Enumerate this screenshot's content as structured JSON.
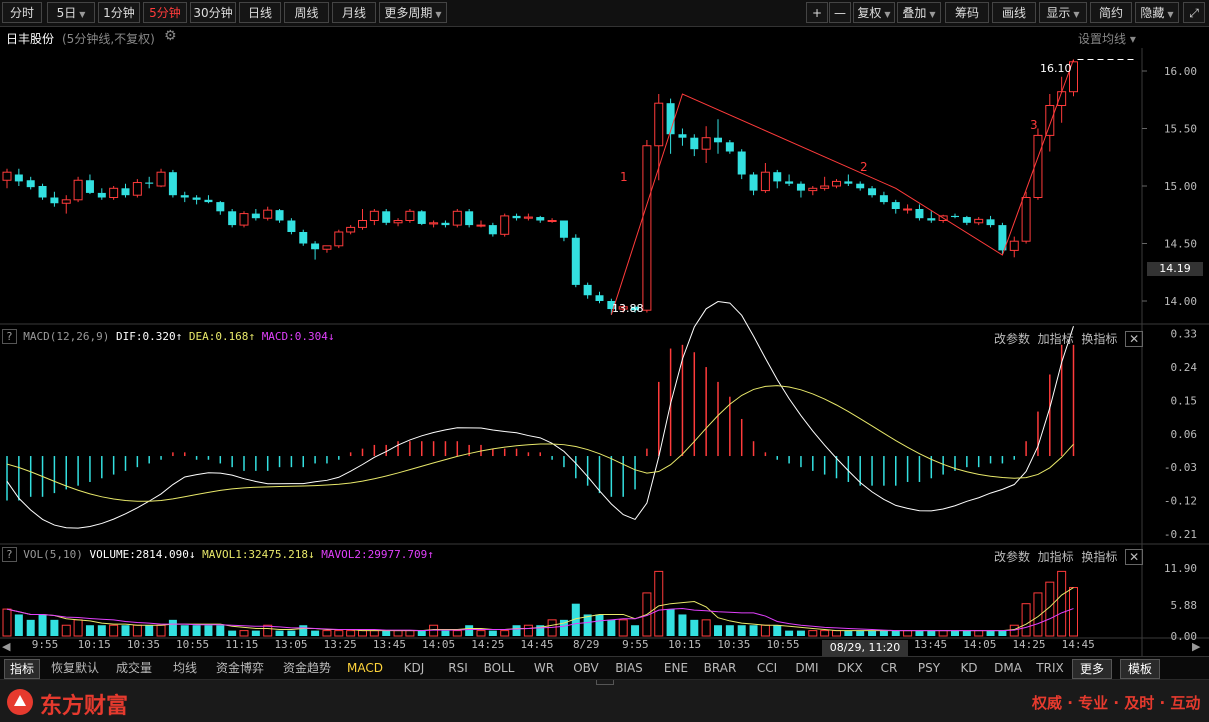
{
  "toolbar": {
    "periods": [
      "分时",
      "5日",
      "1分钟",
      "5分钟",
      "30分钟",
      "日线",
      "周线",
      "月线",
      "更多周期"
    ],
    "active_period": "5分钟",
    "right_buttons": [
      "复权",
      "叠加",
      "筹码",
      "画线",
      "显示",
      "简约",
      "隐藏"
    ],
    "plus": "+",
    "minus": "—"
  },
  "stock": {
    "name": "日丰股份",
    "mode": "(5分钟线,不复权)",
    "setting_link": "设置均线"
  },
  "price_panel": {
    "y_ticks": [
      "16.00",
      "15.50",
      "15.00",
      "14.50",
      "14.00"
    ],
    "current_price": "14.19",
    "high_label": "16.10",
    "low_label": "13.88",
    "wave_labels": [
      "1",
      "2",
      "3"
    ]
  },
  "macd_panel": {
    "title": "MACD(12,26,9)",
    "dif": "DIF:0.320",
    "dea": "DEA:0.168",
    "macd": "MACD:0.304",
    "buttons": [
      "改参数",
      "加指标",
      "换指标"
    ],
    "y_ticks": [
      "0.33",
      "0.24",
      "0.15",
      "0.06",
      "-0.03",
      "-0.12",
      "-0.21"
    ]
  },
  "vol_panel": {
    "title": "VOL(5,10)",
    "volume": "VOLUME:2814.090",
    "mavol1": "MAVOL1:32475.218",
    "mavol2": "MAVOL2:29977.709",
    "buttons": [
      "改参数",
      "加指标",
      "换指标"
    ],
    "y_ticks": [
      "11.90",
      "5.88",
      "0.00"
    ]
  },
  "time_axis": {
    "labels": [
      "9:55",
      "10:15",
      "10:35",
      "10:55",
      "11:15",
      "13:05",
      "13:25",
      "13:45",
      "14:05",
      "14:25",
      "14:45",
      "8/29",
      "9:55",
      "10:15",
      "10:35",
      "10:55",
      "11:",
      "13:25",
      "13:45",
      "14:05",
      "14:25",
      "14:45"
    ],
    "cursor_label": "08/29, 11:20"
  },
  "tabs": [
    "指标",
    "恢复默认",
    "成交量",
    "均线",
    "资金博弈",
    "资金趋势",
    "MACD",
    "KDJ",
    "RSI",
    "BOLL",
    "WR",
    "OBV",
    "BIAS",
    "ENE",
    "BRAR",
    "CCI",
    "DMI",
    "DKX",
    "CR",
    "PSY",
    "KD",
    "DMA",
    "TRIX",
    "更多",
    "模板"
  ],
  "footer": {
    "brand": "东方财富",
    "slogan": "权威 · 专业 · 及时 · 互动"
  },
  "colors": {
    "up": "#ff3b3b",
    "down": "#33e0e0",
    "dif_line": "#ffffff",
    "dea_line": "#e8e86a",
    "mavol2": "#e040fb",
    "brand_red": "#e63a2e"
  },
  "chart_data": {
    "type": "candlestick",
    "ohlc": [
      [
        15.05,
        15.15,
        14.98,
        15.12
      ],
      [
        15.1,
        15.15,
        15.0,
        15.04
      ],
      [
        15.05,
        15.08,
        14.97,
        14.99
      ],
      [
        15.0,
        15.02,
        14.88,
        14.9
      ],
      [
        14.9,
        14.95,
        14.82,
        14.85
      ],
      [
        14.85,
        14.92,
        14.76,
        14.88
      ],
      [
        14.88,
        15.08,
        14.86,
        15.05
      ],
      [
        15.05,
        15.1,
        14.93,
        14.94
      ],
      [
        14.94,
        14.98,
        14.88,
        14.9
      ],
      [
        14.9,
        15.0,
        14.88,
        14.98
      ],
      [
        14.98,
        15.02,
        14.9,
        14.92
      ],
      [
        14.92,
        15.06,
        14.9,
        15.03
      ],
      [
        15.03,
        15.08,
        14.98,
        15.02
      ],
      [
        15.0,
        15.15,
        14.99,
        15.12
      ],
      [
        15.12,
        15.14,
        14.9,
        14.92
      ],
      [
        14.92,
        14.95,
        14.86,
        14.9
      ],
      [
        14.9,
        14.92,
        14.84,
        14.88
      ],
      [
        14.88,
        14.92,
        14.85,
        14.86
      ],
      [
        14.86,
        14.87,
        14.75,
        14.78
      ],
      [
        14.78,
        14.8,
        14.64,
        14.66
      ],
      [
        14.66,
        14.78,
        14.64,
        14.76
      ],
      [
        14.76,
        14.8,
        14.7,
        14.72
      ],
      [
        14.72,
        14.82,
        14.7,
        14.79
      ],
      [
        14.79,
        14.8,
        14.68,
        14.7
      ],
      [
        14.7,
        14.72,
        14.58,
        14.6
      ],
      [
        14.6,
        14.62,
        14.48,
        14.5
      ],
      [
        14.5,
        14.52,
        14.36,
        14.45
      ],
      [
        14.45,
        14.48,
        14.42,
        14.48
      ],
      [
        14.48,
        14.62,
        14.46,
        14.6
      ],
      [
        14.6,
        14.66,
        14.58,
        14.64
      ],
      [
        14.64,
        14.8,
        14.62,
        14.7
      ],
      [
        14.7,
        14.8,
        14.66,
        14.78
      ],
      [
        14.78,
        14.8,
        14.66,
        14.68
      ],
      [
        14.68,
        14.72,
        14.65,
        14.7
      ],
      [
        14.7,
        14.8,
        14.68,
        14.78
      ],
      [
        14.78,
        14.79,
        14.66,
        14.67
      ],
      [
        14.67,
        14.7,
        14.64,
        14.68
      ],
      [
        14.68,
        14.7,
        14.64,
        14.66
      ],
      [
        14.66,
        14.8,
        14.64,
        14.78
      ],
      [
        14.78,
        14.8,
        14.64,
        14.66
      ],
      [
        14.66,
        14.7,
        14.64,
        14.66
      ],
      [
        14.66,
        14.68,
        14.56,
        14.58
      ],
      [
        14.58,
        14.76,
        14.56,
        14.74
      ],
      [
        14.74,
        14.76,
        14.7,
        14.72
      ],
      [
        14.72,
        14.76,
        14.7,
        14.73
      ],
      [
        14.73,
        14.74,
        14.68,
        14.7
      ],
      [
        14.7,
        14.72,
        14.68,
        14.7
      ],
      [
        14.7,
        14.7,
        14.52,
        14.55
      ],
      [
        14.55,
        14.58,
        14.12,
        14.14
      ],
      [
        14.14,
        14.16,
        14.02,
        14.05
      ],
      [
        14.05,
        14.08,
        13.98,
        14.0
      ],
      [
        14.0,
        14.02,
        13.88,
        13.93
      ],
      [
        13.93,
        13.96,
        13.9,
        13.95
      ],
      [
        13.95,
        13.96,
        13.9,
        13.92
      ],
      [
        13.92,
        15.4,
        13.9,
        15.35
      ],
      [
        15.35,
        15.8,
        15.05,
        15.72
      ],
      [
        15.72,
        15.76,
        15.28,
        15.45
      ],
      [
        15.45,
        15.5,
        15.35,
        15.42
      ],
      [
        15.42,
        15.45,
        15.26,
        15.32
      ],
      [
        15.32,
        15.52,
        15.2,
        15.42
      ],
      [
        15.42,
        15.58,
        15.28,
        15.38
      ],
      [
        15.38,
        15.4,
        15.28,
        15.3
      ],
      [
        15.3,
        15.32,
        15.06,
        15.1
      ],
      [
        15.1,
        15.12,
        14.92,
        14.96
      ],
      [
        14.96,
        15.2,
        14.94,
        15.12
      ],
      [
        15.12,
        15.14,
        14.98,
        15.04
      ],
      [
        15.04,
        15.1,
        15.0,
        15.02
      ],
      [
        15.02,
        15.04,
        14.9,
        14.96
      ],
      [
        14.96,
        15.0,
        14.92,
        14.98
      ],
      [
        14.98,
        15.08,
        14.96,
        15.0
      ],
      [
        15.0,
        15.06,
        14.98,
        15.04
      ],
      [
        15.04,
        15.1,
        15.0,
        15.02
      ],
      [
        15.02,
        15.04,
        14.96,
        14.98
      ],
      [
        14.98,
        15.0,
        14.9,
        14.92
      ],
      [
        14.92,
        14.95,
        14.84,
        14.86
      ],
      [
        14.86,
        14.88,
        14.76,
        14.8
      ],
      [
        14.8,
        14.84,
        14.76,
        14.8
      ],
      [
        14.8,
        14.84,
        14.7,
        14.72
      ],
      [
        14.72,
        14.78,
        14.68,
        14.7
      ],
      [
        14.7,
        14.75,
        14.68,
        14.74
      ],
      [
        14.74,
        14.76,
        14.72,
        14.73
      ],
      [
        14.73,
        14.74,
        14.66,
        14.68
      ],
      [
        14.68,
        14.73,
        14.66,
        14.71
      ],
      [
        14.71,
        14.74,
        14.64,
        14.66
      ],
      [
        14.66,
        14.68,
        14.4,
        14.44
      ],
      [
        14.44,
        14.56,
        14.38,
        14.52
      ],
      [
        14.52,
        14.95,
        14.5,
        14.9
      ],
      [
        14.9,
        15.5,
        14.88,
        15.44
      ],
      [
        15.44,
        15.8,
        15.3,
        15.7
      ],
      [
        15.7,
        15.95,
        15.55,
        15.82
      ],
      [
        15.82,
        16.1,
        15.78,
        16.08
      ]
    ],
    "y_range": [
      13.8,
      16.2
    ],
    "vol": [
      5,
      4,
      3,
      4,
      3,
      2,
      3,
      2,
      2,
      2,
      2,
      2,
      2,
      2,
      3,
      2,
      2,
      2,
      2,
      1,
      1,
      1,
      2,
      1,
      1,
      2,
      1,
      1,
      1,
      1,
      1,
      1,
      1,
      1,
      1,
      1,
      2,
      1,
      1,
      2,
      1,
      1,
      1,
      2,
      2,
      2,
      3,
      3,
      6,
      4,
      4,
      3,
      3,
      2,
      8,
      12,
      5,
      4,
      3,
      3,
      2,
      2,
      2,
      2,
      2,
      2,
      1,
      1,
      1,
      1,
      1,
      1,
      1,
      1,
      1,
      1,
      1,
      1,
      1,
      1,
      1,
      1,
      1,
      1,
      1,
      2,
      6,
      8,
      10,
      12,
      9
    ],
    "macd_bars": [
      -0.12,
      -0.12,
      -0.11,
      -0.11,
      -0.1,
      -0.09,
      -0.08,
      -0.07,
      -0.06,
      -0.05,
      -0.04,
      -0.03,
      -0.02,
      -0.01,
      0.01,
      0.01,
      -0.01,
      -0.01,
      -0.02,
      -0.03,
      -0.04,
      -0.04,
      -0.04,
      -0.03,
      -0.03,
      -0.03,
      -0.02,
      -0.02,
      -0.01,
      0.01,
      0.02,
      0.03,
      0.03,
      0.04,
      0.04,
      0.04,
      0.04,
      0.04,
      0.04,
      0.03,
      0.03,
      0.02,
      0.02,
      0.02,
      0.01,
      0.01,
      -0.01,
      -0.03,
      -0.06,
      -0.08,
      -0.1,
      -0.11,
      -0.11,
      -0.09,
      0.02,
      0.2,
      0.29,
      0.3,
      0.28,
      0.24,
      0.2,
      0.16,
      0.1,
      0.04,
      0.01,
      -0.01,
      -0.02,
      -0.03,
      -0.04,
      -0.05,
      -0.06,
      -0.07,
      -0.08,
      -0.08,
      -0.08,
      -0.08,
      -0.07,
      -0.07,
      -0.06,
      -0.05,
      -0.04,
      -0.03,
      -0.03,
      -0.02,
      -0.02,
      -0.01,
      0.04,
      0.12,
      0.22,
      0.3,
      0.3
    ],
    "macd_range": [
      -0.24,
      0.34
    ]
  }
}
